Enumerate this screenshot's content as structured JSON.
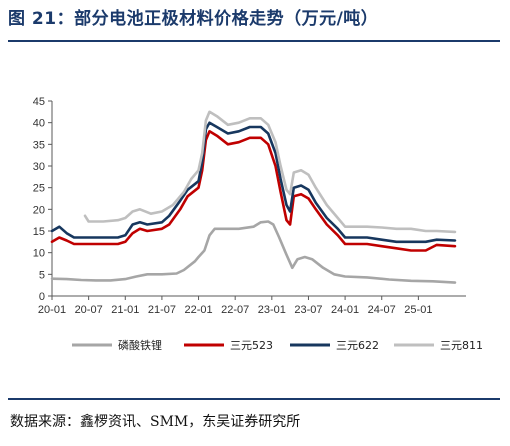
{
  "header": {
    "title": "图 21：部分电池正极材料价格走势（万元/吨）"
  },
  "footer": {
    "source": "数据来源：鑫椤资讯、SMM，东吴证券研究所"
  },
  "chart_data": {
    "type": "line",
    "x_tick_labels": [
      "20-01",
      "20-07",
      "21-01",
      "21-07",
      "22-01",
      "22-07",
      "23-01",
      "23-07",
      "24-01",
      "24-07",
      "25-01"
    ],
    "ylim": [
      0,
      45
    ],
    "y_ticks": [
      0,
      5,
      10,
      15,
      20,
      25,
      30,
      35,
      40,
      45
    ],
    "grid": false,
    "legend_position": "bottom",
    "series": [
      {
        "name": "磷酸铁锂",
        "color": "#a6a6a6",
        "points": [
          [
            2020.0,
            4.0
          ],
          [
            2020.2,
            3.9
          ],
          [
            2020.4,
            3.7
          ],
          [
            2020.6,
            3.6
          ],
          [
            2020.8,
            3.6
          ],
          [
            2021.0,
            3.9
          ],
          [
            2021.15,
            4.5
          ],
          [
            2021.3,
            5.0
          ],
          [
            2021.5,
            5.0
          ],
          [
            2021.7,
            5.2
          ],
          [
            2021.8,
            6.0
          ],
          [
            2021.95,
            8.0
          ],
          [
            2022.0,
            9.0
          ],
          [
            2022.08,
            10.5
          ],
          [
            2022.15,
            14.0
          ],
          [
            2022.22,
            15.5
          ],
          [
            2022.35,
            15.5
          ],
          [
            2022.55,
            15.5
          ],
          [
            2022.75,
            16.0
          ],
          [
            2022.85,
            17.0
          ],
          [
            2022.95,
            17.2
          ],
          [
            2023.02,
            16.5
          ],
          [
            2023.1,
            13.5
          ],
          [
            2023.2,
            9.5
          ],
          [
            2023.28,
            6.5
          ],
          [
            2023.35,
            8.5
          ],
          [
            2023.45,
            9.0
          ],
          [
            2023.55,
            8.5
          ],
          [
            2023.7,
            6.5
          ],
          [
            2023.85,
            5.0
          ],
          [
            2024.0,
            4.5
          ],
          [
            2024.3,
            4.3
          ],
          [
            2024.6,
            3.8
          ],
          [
            2024.9,
            3.5
          ],
          [
            2025.2,
            3.4
          ],
          [
            2025.5,
            3.1
          ]
        ]
      },
      {
        "name": "三元523",
        "color": "#c00000",
        "points": [
          [
            2020.0,
            12.5
          ],
          [
            2020.1,
            13.5
          ],
          [
            2020.2,
            12.8
          ],
          [
            2020.3,
            12.0
          ],
          [
            2020.6,
            12.0
          ],
          [
            2020.9,
            12.0
          ],
          [
            2021.0,
            12.5
          ],
          [
            2021.1,
            14.5
          ],
          [
            2021.2,
            15.5
          ],
          [
            2021.3,
            15.0
          ],
          [
            2021.5,
            15.5
          ],
          [
            2021.6,
            16.5
          ],
          [
            2021.75,
            20.0
          ],
          [
            2021.85,
            23.0
          ],
          [
            2022.0,
            25.0
          ],
          [
            2022.05,
            29.0
          ],
          [
            2022.1,
            36.0
          ],
          [
            2022.15,
            38.0
          ],
          [
            2022.25,
            37.0
          ],
          [
            2022.4,
            35.0
          ],
          [
            2022.55,
            35.5
          ],
          [
            2022.7,
            36.5
          ],
          [
            2022.85,
            36.5
          ],
          [
            2022.95,
            35.0
          ],
          [
            2023.05,
            30.0
          ],
          [
            2023.12,
            24.0
          ],
          [
            2023.2,
            17.5
          ],
          [
            2023.25,
            16.5
          ],
          [
            2023.3,
            23.0
          ],
          [
            2023.4,
            23.5
          ],
          [
            2023.5,
            22.5
          ],
          [
            2023.6,
            20.0
          ],
          [
            2023.75,
            16.5
          ],
          [
            2023.9,
            14.0
          ],
          [
            2024.0,
            12.0
          ],
          [
            2024.3,
            12.0
          ],
          [
            2024.5,
            11.5
          ],
          [
            2024.7,
            11.0
          ],
          [
            2024.9,
            10.5
          ],
          [
            2025.1,
            10.5
          ],
          [
            2025.25,
            11.8
          ],
          [
            2025.5,
            11.5
          ]
        ]
      },
      {
        "name": "三元622",
        "color": "#17375e",
        "points": [
          [
            2020.0,
            15.0
          ],
          [
            2020.1,
            16.0
          ],
          [
            2020.2,
            14.5
          ],
          [
            2020.3,
            13.5
          ],
          [
            2020.6,
            13.5
          ],
          [
            2020.9,
            13.5
          ],
          [
            2021.0,
            14.0
          ],
          [
            2021.1,
            16.5
          ],
          [
            2021.2,
            17.0
          ],
          [
            2021.3,
            16.5
          ],
          [
            2021.5,
            17.0
          ],
          [
            2021.6,
            18.5
          ],
          [
            2021.75,
            22.0
          ],
          [
            2021.85,
            24.5
          ],
          [
            2022.0,
            26.5
          ],
          [
            2022.05,
            31.0
          ],
          [
            2022.1,
            38.5
          ],
          [
            2022.15,
            40.0
          ],
          [
            2022.25,
            39.0
          ],
          [
            2022.4,
            37.5
          ],
          [
            2022.55,
            38.0
          ],
          [
            2022.7,
            39.0
          ],
          [
            2022.85,
            39.0
          ],
          [
            2022.95,
            37.5
          ],
          [
            2023.05,
            33.0
          ],
          [
            2023.12,
            27.0
          ],
          [
            2023.2,
            21.0
          ],
          [
            2023.25,
            19.5
          ],
          [
            2023.3,
            25.0
          ],
          [
            2023.4,
            25.5
          ],
          [
            2023.5,
            24.5
          ],
          [
            2023.6,
            21.5
          ],
          [
            2023.75,
            18.0
          ],
          [
            2023.9,
            15.5
          ],
          [
            2024.0,
            13.5
          ],
          [
            2024.3,
            13.5
          ],
          [
            2024.5,
            13.0
          ],
          [
            2024.7,
            12.5
          ],
          [
            2024.9,
            12.5
          ],
          [
            2025.1,
            12.5
          ],
          [
            2025.25,
            13.0
          ],
          [
            2025.5,
            12.8
          ]
        ]
      },
      {
        "name": "三元811",
        "color": "#bfbfbf",
        "points": [
          [
            2020.45,
            18.5
          ],
          [
            2020.5,
            17.2
          ],
          [
            2020.7,
            17.2
          ],
          [
            2020.9,
            17.5
          ],
          [
            2021.0,
            18.0
          ],
          [
            2021.1,
            19.5
          ],
          [
            2021.2,
            20.0
          ],
          [
            2021.35,
            19.0
          ],
          [
            2021.5,
            19.5
          ],
          [
            2021.65,
            21.0
          ],
          [
            2021.8,
            24.0
          ],
          [
            2021.9,
            27.0
          ],
          [
            2022.0,
            29.0
          ],
          [
            2022.05,
            33.0
          ],
          [
            2022.1,
            40.5
          ],
          [
            2022.15,
            42.5
          ],
          [
            2022.25,
            41.5
          ],
          [
            2022.4,
            39.5
          ],
          [
            2022.55,
            40.0
          ],
          [
            2022.7,
            41.0
          ],
          [
            2022.85,
            41.0
          ],
          [
            2022.95,
            39.5
          ],
          [
            2023.05,
            35.5
          ],
          [
            2023.12,
            30.0
          ],
          [
            2023.2,
            24.5
          ],
          [
            2023.25,
            23.5
          ],
          [
            2023.3,
            28.5
          ],
          [
            2023.4,
            29.0
          ],
          [
            2023.5,
            28.0
          ],
          [
            2023.6,
            25.0
          ],
          [
            2023.75,
            21.0
          ],
          [
            2023.9,
            18.0
          ],
          [
            2024.0,
            16.0
          ],
          [
            2024.3,
            16.0
          ],
          [
            2024.5,
            15.8
          ],
          [
            2024.7,
            15.5
          ],
          [
            2024.9,
            15.5
          ],
          [
            2025.1,
            15.0
          ],
          [
            2025.25,
            15.0
          ],
          [
            2025.5,
            14.8
          ]
        ]
      }
    ]
  }
}
